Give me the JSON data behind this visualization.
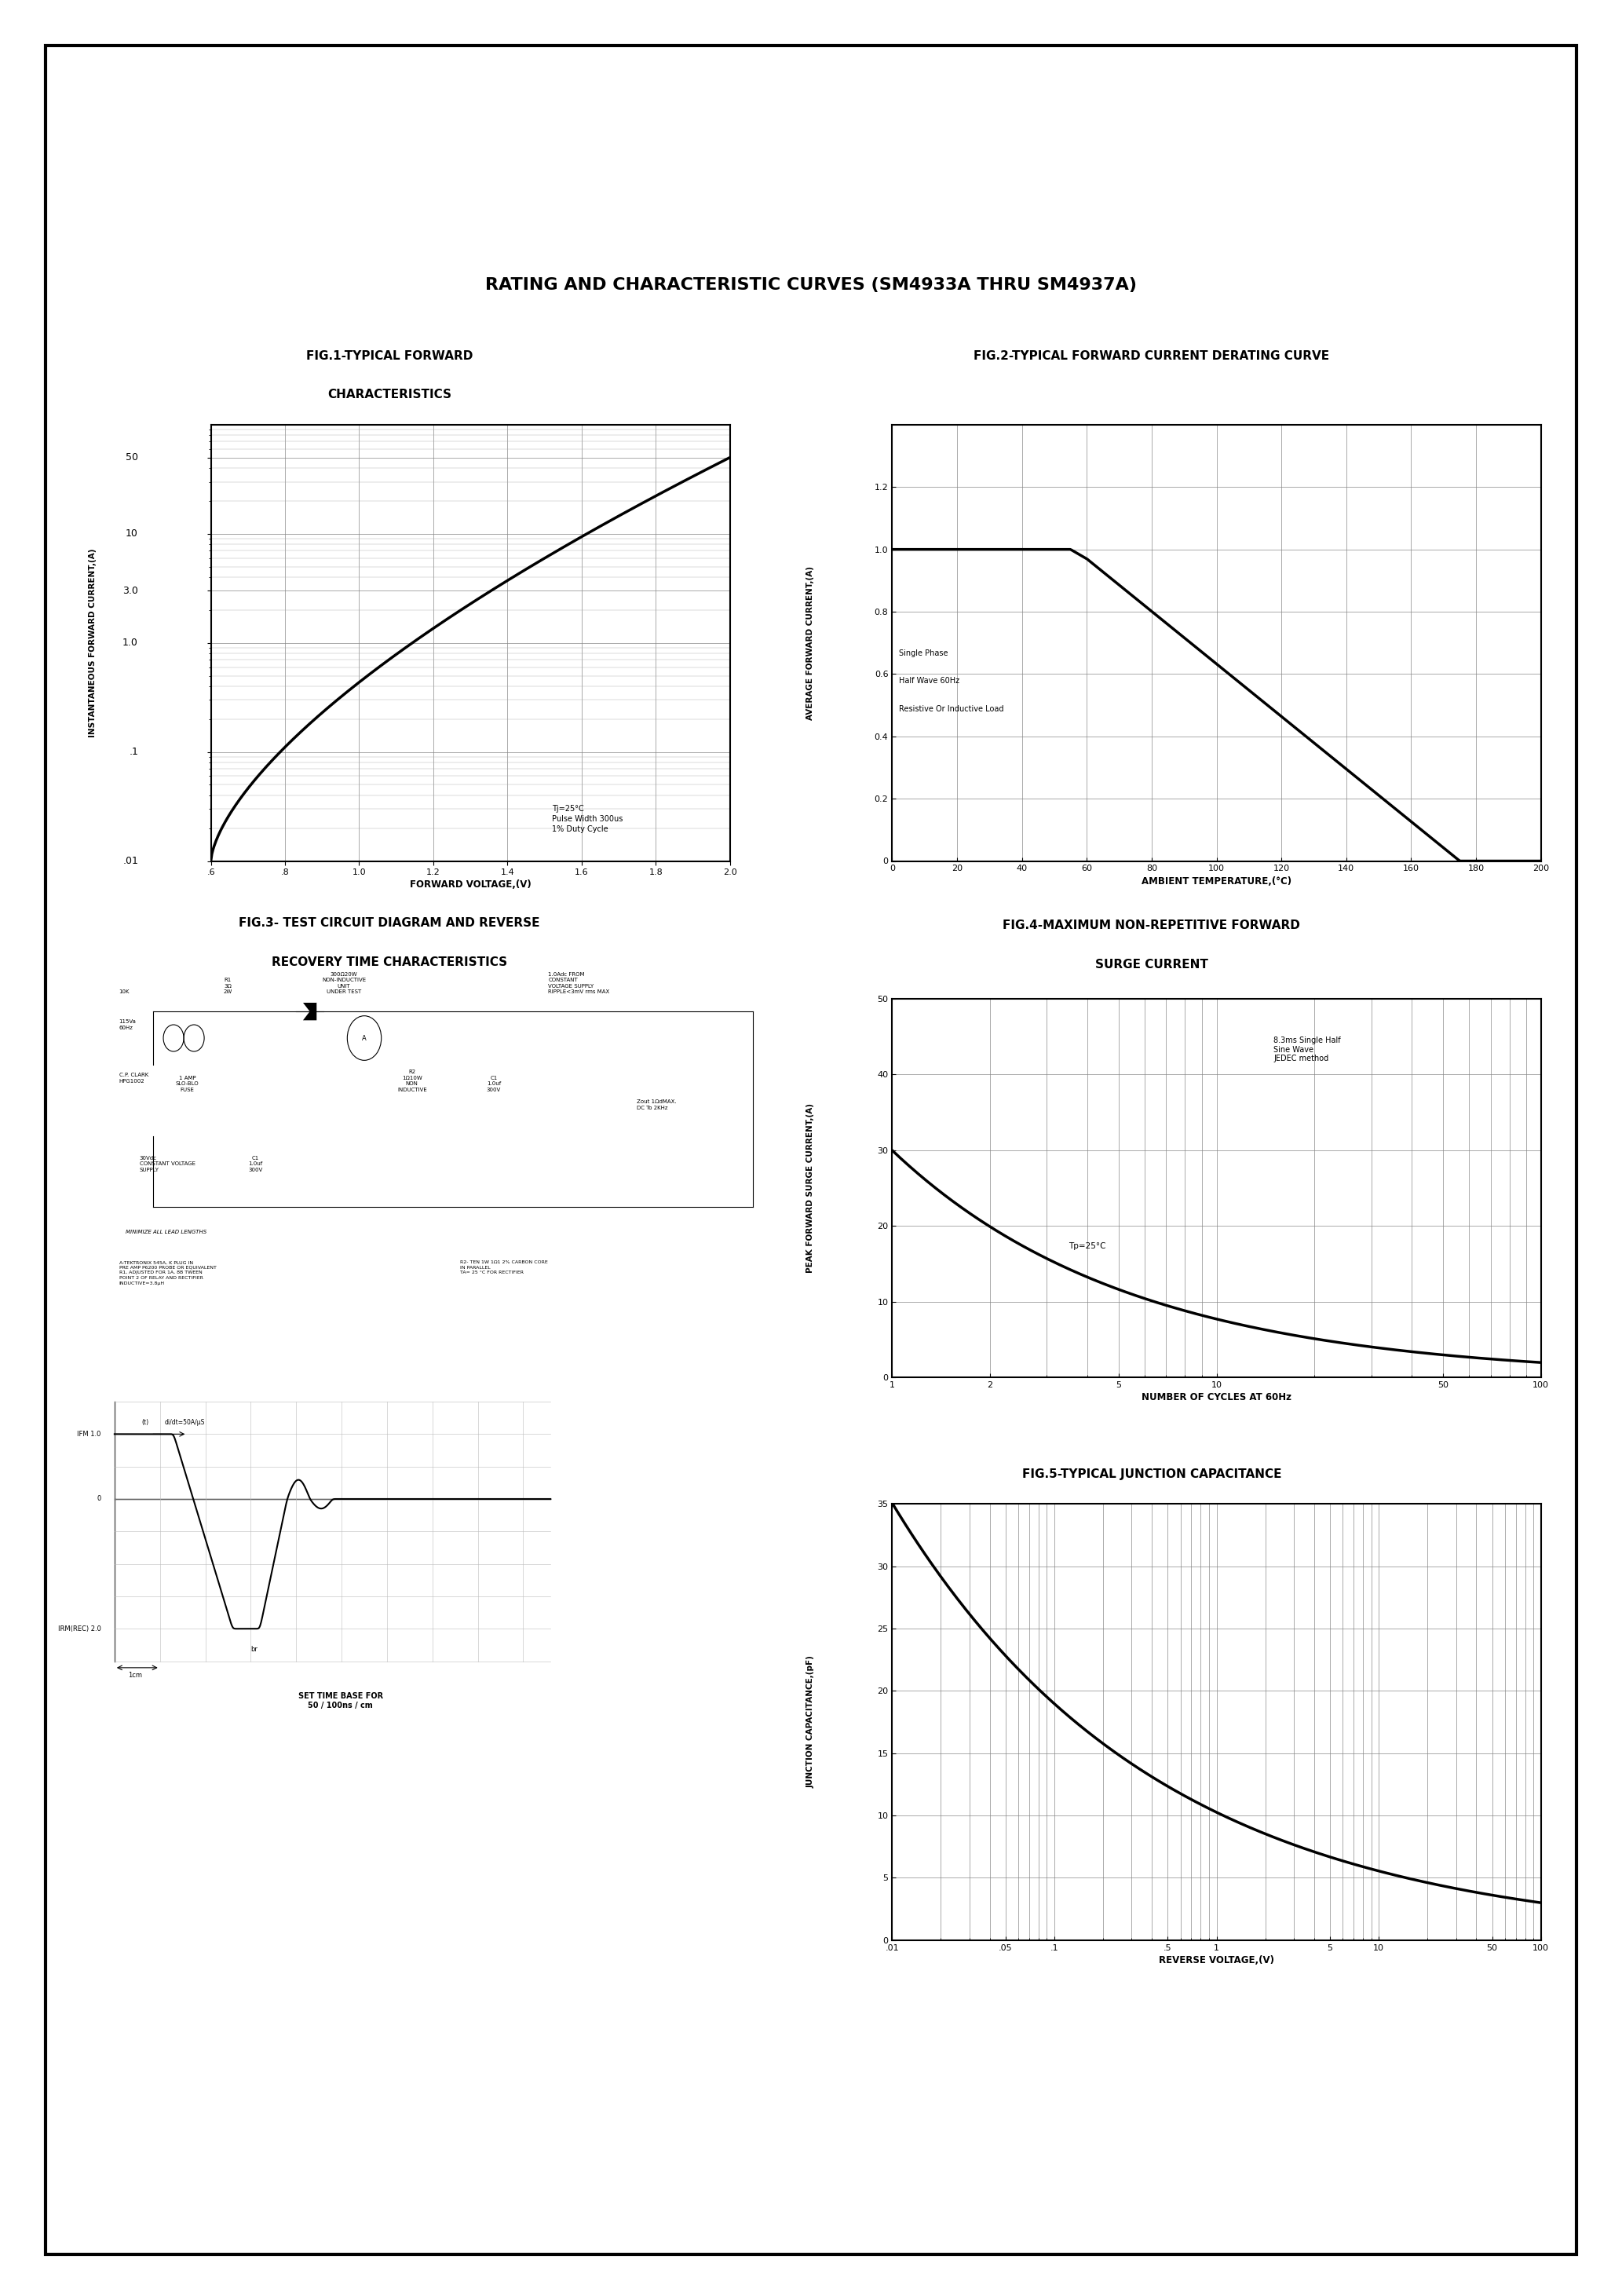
{
  "title": "RATING AND CHARACTERISTIC CURVES (SM4933A THRU SM4937A)",
  "fig1_title_line1": "FIG.1-TYPICAL FORWARD",
  "fig1_title_line2": "CHARACTERISTICS",
  "fig2_title": "FIG.2-TYPICAL FORWARD CURRENT DERATING CURVE",
  "fig3_title_line1": "FIG.3- TEST CIRCUIT DIAGRAM AND REVERSE",
  "fig3_title_line2": "RECOVERY TIME CHARACTERISTICS",
  "fig4_title_line1": "FIG.4-MAXIMUM NON-REPETITIVE FORWARD",
  "fig4_title_line2": "SURGE CURRENT",
  "fig5_title": "FIG.5-TYPICAL JUNCTION CAPACITANCE",
  "fig1_xlabel": "FORWARD VOLTAGE,(V)",
  "fig1_ylabel": "INSTANTANEOUS FORWARD CURRENT,(A)",
  "fig1_yticks": [
    0.01,
    0.1,
    1.0,
    3.0,
    10,
    50
  ],
  "fig1_ytick_labels": [
    ".01",
    ".1",
    "1.0",
    "3.0",
    "10",
    "50"
  ],
  "fig1_xticks": [
    0.6,
    0.8,
    1.0,
    1.2,
    1.4,
    1.6,
    1.8,
    2.0
  ],
  "fig1_xtick_labels": [
    ".6",
    ".8",
    "1.0",
    "1.2",
    "1.4",
    "1.6",
    "1.8",
    "2.0"
  ],
  "fig1_annotation": "Tj=25°C\nPulse Width 300us\n1% Duty Cycle",
  "fig2_xlabel": "AMBIENT TEMPERATURE,(°C)",
  "fig2_ylabel": "AVERAGE FORWARD CURRENT,(A)",
  "fig2_xticks": [
    0,
    20,
    40,
    60,
    80,
    100,
    120,
    140,
    160,
    180,
    200
  ],
  "fig2_yticks": [
    0,
    0.2,
    0.4,
    0.6,
    0.8,
    1.0,
    1.2
  ],
  "fig2_legend": [
    "Single Phase",
    "Half Wave 60Hz",
    "Resistive Or Inductive Load"
  ],
  "fig4_xlabel": "NUMBER OF CYCLES AT 60Hz",
  "fig4_ylabel": "PEAK FORWARD SURGE CURRENT,(A)",
  "fig4_xticks": [
    1,
    2,
    5,
    10,
    50,
    100
  ],
  "fig4_xtick_labels": [
    "1",
    "2",
    "5",
    "10",
    "50",
    "100"
  ],
  "fig4_yticks": [
    0,
    10,
    20,
    30,
    40,
    50
  ],
  "fig4_annotation1": "Tp=25°C",
  "fig4_annotation2": "8.3ms Single Half\nSine Wave\nJEDEC method",
  "fig5_xlabel": "REVERSE VOLTAGE,(V)",
  "fig5_ylabel": "JUNCTION CAPACITANCE,(pF)",
  "fig5_xticks": [
    0.01,
    0.05,
    0.1,
    0.5,
    1,
    5,
    10,
    50,
    100
  ],
  "fig5_xtick_labels": [
    ".01",
    ".05",
    ".1",
    ".5",
    "1",
    "5",
    "10",
    "50",
    "100"
  ],
  "fig5_yticks": [
    0,
    5,
    10,
    15,
    20,
    25,
    30,
    35
  ],
  "bg_color": "#ffffff",
  "line_color": "#000000",
  "grid_color": "#888888",
  "border_color": "#000000"
}
